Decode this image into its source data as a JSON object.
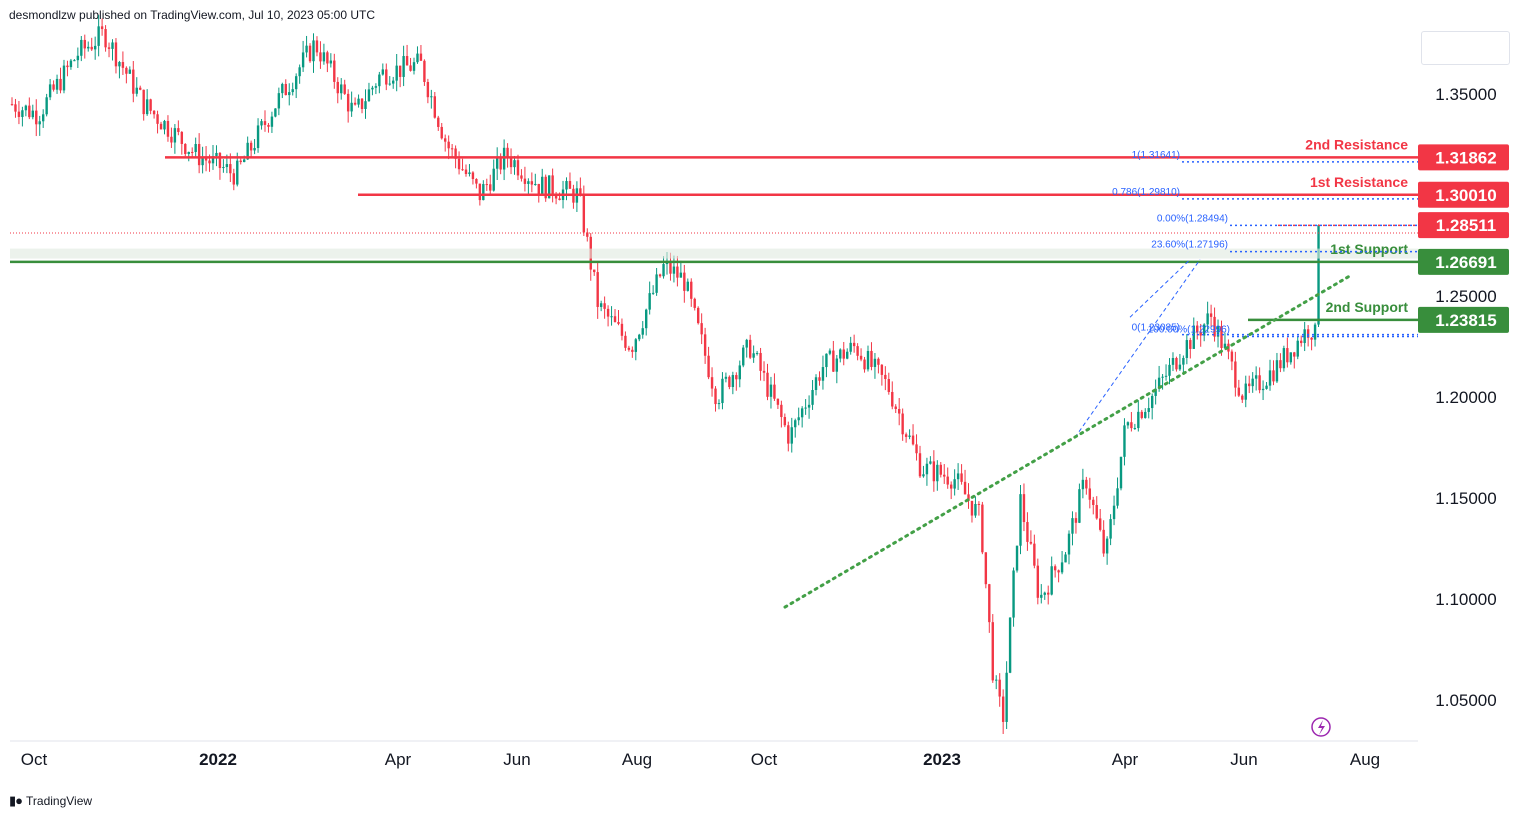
{
  "header": {
    "published": "desmondlzw published on TradingView.com, Jul 10, 2023 05:00 UTC"
  },
  "footer": {
    "brand": "TradingView",
    "logo_icon": "tradingview-logo-icon"
  },
  "colors": {
    "bull": "#089981",
    "bear": "#f23645",
    "resistance": "#f23645",
    "support": "#388e3c",
    "fib": "#2962ff",
    "trend": "#43a047"
  },
  "chart_data": {
    "type": "candlestick",
    "symbol_pair_hint": "",
    "x_ticks": [
      "Oct",
      "2022",
      "Apr",
      "Jun",
      "Aug",
      "Oct",
      "2023",
      "Apr",
      "Jun",
      "Aug"
    ],
    "x_tick_bold": [
      false,
      true,
      false,
      false,
      false,
      false,
      true,
      false,
      false,
      false
    ],
    "y_ticks": [
      "1.35000",
      "1.25000",
      "1.20000",
      "1.15000",
      "1.10000",
      "1.05000"
    ],
    "y_tick_values": [
      1.35,
      1.25,
      1.2,
      1.15,
      1.1,
      1.05
    ],
    "ylim": [
      1.0325,
      1.3825
    ],
    "price_labels": [
      {
        "text": "1.31862",
        "value": 1.31862,
        "color": "#f23645"
      },
      {
        "text": "1.30010",
        "value": 1.3001,
        "color": "#f23645"
      },
      {
        "text": "1.28511",
        "value": 1.28511,
        "color": "#f23645"
      },
      {
        "text": "1.26691",
        "value": 1.26691,
        "color": "#388e3c"
      },
      {
        "text": "1.23815",
        "value": 1.23815,
        "color": "#388e3c"
      }
    ],
    "levels": [
      {
        "name": "2nd Resistance",
        "value": 1.31862,
        "color": "#f23645"
      },
      {
        "name": "1st Resistance",
        "value": 1.3001,
        "color": "#f23645"
      },
      {
        "name": "1st Support",
        "value": 1.26691,
        "color": "#388e3c"
      },
      {
        "name": "2nd Support",
        "value": 1.23815,
        "color": "#388e3c"
      }
    ],
    "fib_labels": [
      {
        "text": "1(1.31641)",
        "value": 1.31641
      },
      {
        "text": "0.786(1.29810)",
        "value": 1.2981
      },
      {
        "text": "0.00%(1.28494)",
        "value": 1.28494
      },
      {
        "text": "23.60%(1.27196)",
        "value": 1.27196
      },
      {
        "text": "0(1.23085)",
        "value": 1.23085
      },
      {
        "text": "100.00%(1.22996)",
        "value": 1.22996
      }
    ],
    "last_close": 1.28511,
    "series_anchors": [
      [
        0.0,
        1.345
      ],
      [
        0.02,
        1.34
      ],
      [
        0.05,
        1.37
      ],
      [
        0.07,
        1.38
      ],
      [
        0.1,
        1.345
      ],
      [
        0.14,
        1.32
      ],
      [
        0.17,
        1.31
      ],
      [
        0.2,
        1.345
      ],
      [
        0.23,
        1.375
      ],
      [
        0.26,
        1.34
      ],
      [
        0.28,
        1.36
      ],
      [
        0.31,
        1.365
      ],
      [
        0.33,
        1.325
      ],
      [
        0.355,
        1.3
      ],
      [
        0.375,
        1.32
      ],
      [
        0.4,
        1.305
      ],
      [
        0.43,
        1.3
      ],
      [
        0.445,
        1.245
      ],
      [
        0.47,
        1.225
      ],
      [
        0.495,
        1.265
      ],
      [
        0.51,
        1.258
      ],
      [
        0.535,
        1.2
      ],
      [
        0.56,
        1.225
      ],
      [
        0.59,
        1.18
      ],
      [
        0.615,
        1.215
      ],
      [
        0.64,
        1.225
      ],
      [
        0.665,
        1.205
      ],
      [
        0.69,
        1.165
      ],
      [
        0.715,
        1.16
      ],
      [
        0.735,
        1.14
      ],
      [
        0.745,
        1.06
      ],
      [
        0.752,
        1.04
      ],
      [
        0.765,
        1.15
      ],
      [
        0.78,
        1.1
      ],
      [
        0.8,
        1.125
      ],
      [
        0.815,
        1.16
      ],
      [
        0.83,
        1.12
      ],
      [
        0.845,
        1.185
      ],
      [
        0.865,
        1.2
      ],
      [
        0.89,
        1.225
      ],
      [
        0.91,
        1.24
      ],
      [
        0.935,
        1.2
      ],
      [
        0.96,
        1.215
      ],
      [
        0.985,
        1.235
      ],
      [
        1.01,
        1.205
      ]
    ]
  }
}
